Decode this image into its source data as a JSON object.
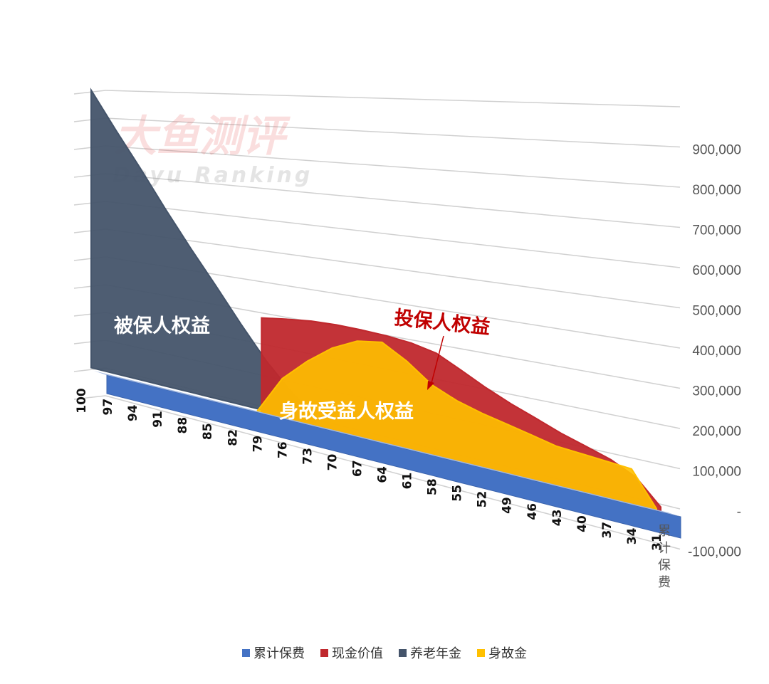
{
  "chart_data": {
    "type": "area",
    "x": [
      100,
      97,
      94,
      91,
      88,
      85,
      82,
      79,
      76,
      73,
      70,
      67,
      64,
      61,
      58,
      55,
      52,
      49,
      46,
      43,
      40,
      37,
      34,
      31
    ],
    "y_axis_labels": [
      "900,000",
      "800,000",
      "700,000",
      "600,000",
      "500,000",
      "400,000",
      "300,000",
      "200,000",
      "100,000",
      "-",
      "-100,000"
    ],
    "ylim": [
      -100000,
      1000000
    ],
    "depth_axis_label": "累计保费",
    "series": [
      {
        "name": "累计保费",
        "color": "#4472c4",
        "values": [
          20000,
          20000,
          20000,
          20000,
          20000,
          20000,
          20000,
          20000,
          20000,
          20000,
          20000,
          20000,
          20000,
          20000,
          20000,
          20000,
          20000,
          20000,
          20000,
          20000,
          20000,
          20000,
          20000,
          20000
        ]
      },
      {
        "name": "现金价值",
        "color": "#c0282d",
        "values": [
          null,
          null,
          null,
          null,
          null,
          null,
          null,
          300000,
          310000,
          318000,
          320000,
          318000,
          314000,
          306000,
          290000,
          255000,
          220000,
          190000,
          165000,
          140000,
          120000,
          100000,
          70000,
          10000
        ]
      },
      {
        "name": "养老年金",
        "color": "#44546a",
        "values": [
          1000000,
          860000,
          730000,
          600000,
          480000,
          370000,
          260000,
          160000,
          80000,
          20000,
          null,
          null,
          null,
          null,
          null,
          null,
          null,
          null,
          null,
          null,
          null,
          null,
          null,
          null
        ]
      },
      {
        "name": "身故金",
        "color": "#ffc000",
        "values": [
          null,
          null,
          null,
          null,
          null,
          null,
          null,
          10000,
          130000,
          200000,
          255000,
          290000,
          300000,
          258000,
          205000,
          175000,
          155000,
          140000,
          125000,
          110000,
          105000,
          100000,
          95000,
          10000
        ]
      }
    ],
    "annotations": {
      "insured": "被保人权益",
      "policyholder": "投保人权益",
      "beneficiary": "身故受益人权益"
    },
    "watermark": {
      "cn": "大鱼测评",
      "en": "Dayu Ranking"
    },
    "legend_position": "bottom",
    "grid": true
  }
}
